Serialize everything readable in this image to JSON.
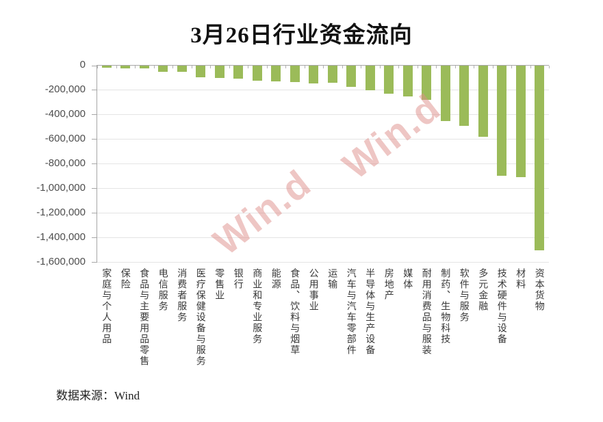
{
  "page": {
    "background": "#ffffff"
  },
  "source_note": "数据来源：Wind",
  "watermark": {
    "text": "Win.d",
    "color": "#df8e8a"
  },
  "chart_data": {
    "type": "bar",
    "title": "3月26日行业资金流向",
    "xlabel": "",
    "ylabel": "",
    "ylim": [
      -1600000,
      0
    ],
    "ytick_interval": 200000,
    "ytick_labels": [
      "0",
      "-200,000",
      "-400,000",
      "-600,000",
      "-800,000",
      "-1,000,000",
      "-1,200,000",
      "-1,400,000",
      "-1,600,000"
    ],
    "grid": true,
    "legend": false,
    "colors": {
      "bar": "#9bbb59",
      "axis": "#a6a6a6",
      "gridline": "#e4e4e4",
      "tick_text": "#4d4d4d"
    },
    "categories": [
      "家庭与个人用品",
      "保险",
      "食品与主要用品零售",
      "电信服务",
      "消费者服务",
      "医疗保健设备与服务",
      "零售业",
      "银行",
      "商业和专业服务",
      "能源",
      "食品、饮料与烟草",
      "公用事业",
      "运输",
      "汽车与汽车零部件",
      "半导体与生产设备",
      "房地产",
      "媒体",
      "耐用消费品与服装",
      "制药、生物科技",
      "软件与服务",
      "多元金融",
      "技术硬件与设备",
      "材料",
      "资本货物"
    ],
    "values": [
      -15000,
      -20000,
      -22000,
      -52000,
      -50000,
      -92000,
      -97000,
      -108000,
      -120000,
      -130000,
      -135000,
      -143000,
      -140000,
      -170000,
      -197000,
      -230000,
      -252000,
      -277000,
      -450000,
      -487000,
      -575000,
      -893000,
      -905000,
      -1500000
    ]
  }
}
